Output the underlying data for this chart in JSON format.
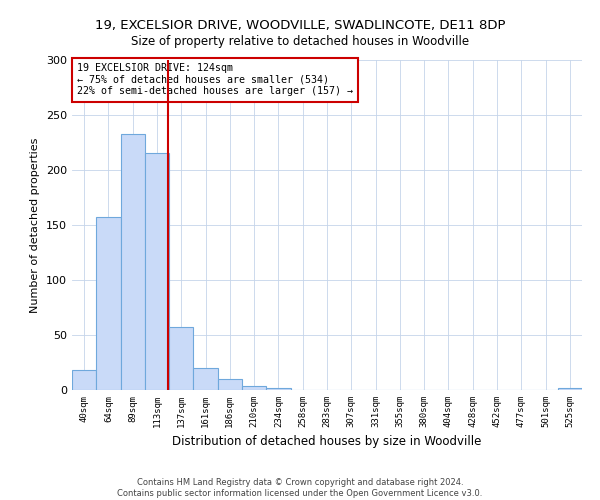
{
  "title": "19, EXCELSIOR DRIVE, WOODVILLE, SWADLINCOTE, DE11 8DP",
  "subtitle": "Size of property relative to detached houses in Woodville",
  "xlabel": "Distribution of detached houses by size in Woodville",
  "ylabel": "Number of detached properties",
  "bin_labels": [
    "40sqm",
    "64sqm",
    "89sqm",
    "113sqm",
    "137sqm",
    "161sqm",
    "186sqm",
    "210sqm",
    "234sqm",
    "258sqm",
    "283sqm",
    "307sqm",
    "331sqm",
    "355sqm",
    "380sqm",
    "404sqm",
    "428sqm",
    "452sqm",
    "477sqm",
    "501sqm",
    "525sqm"
  ],
  "bar_heights": [
    18,
    157,
    233,
    215,
    57,
    20,
    10,
    4,
    2,
    0,
    0,
    0,
    0,
    0,
    0,
    0,
    0,
    0,
    0,
    0,
    2
  ],
  "bar_color": "#c9daf8",
  "bar_edge_color": "#6fa8dc",
  "vline_x": 3.45,
  "vline_color": "#cc0000",
  "annotation_title": "19 EXCELSIOR DRIVE: 124sqm",
  "annotation_line1": "← 75% of detached houses are smaller (534)",
  "annotation_line2": "22% of semi-detached houses are larger (157) →",
  "annotation_box_color": "#cc0000",
  "ylim": [
    0,
    300
  ],
  "yticks": [
    0,
    50,
    100,
    150,
    200,
    250,
    300
  ],
  "footer_line1": "Contains HM Land Registry data © Crown copyright and database right 2024.",
  "footer_line2": "Contains public sector information licensed under the Open Government Licence v3.0."
}
